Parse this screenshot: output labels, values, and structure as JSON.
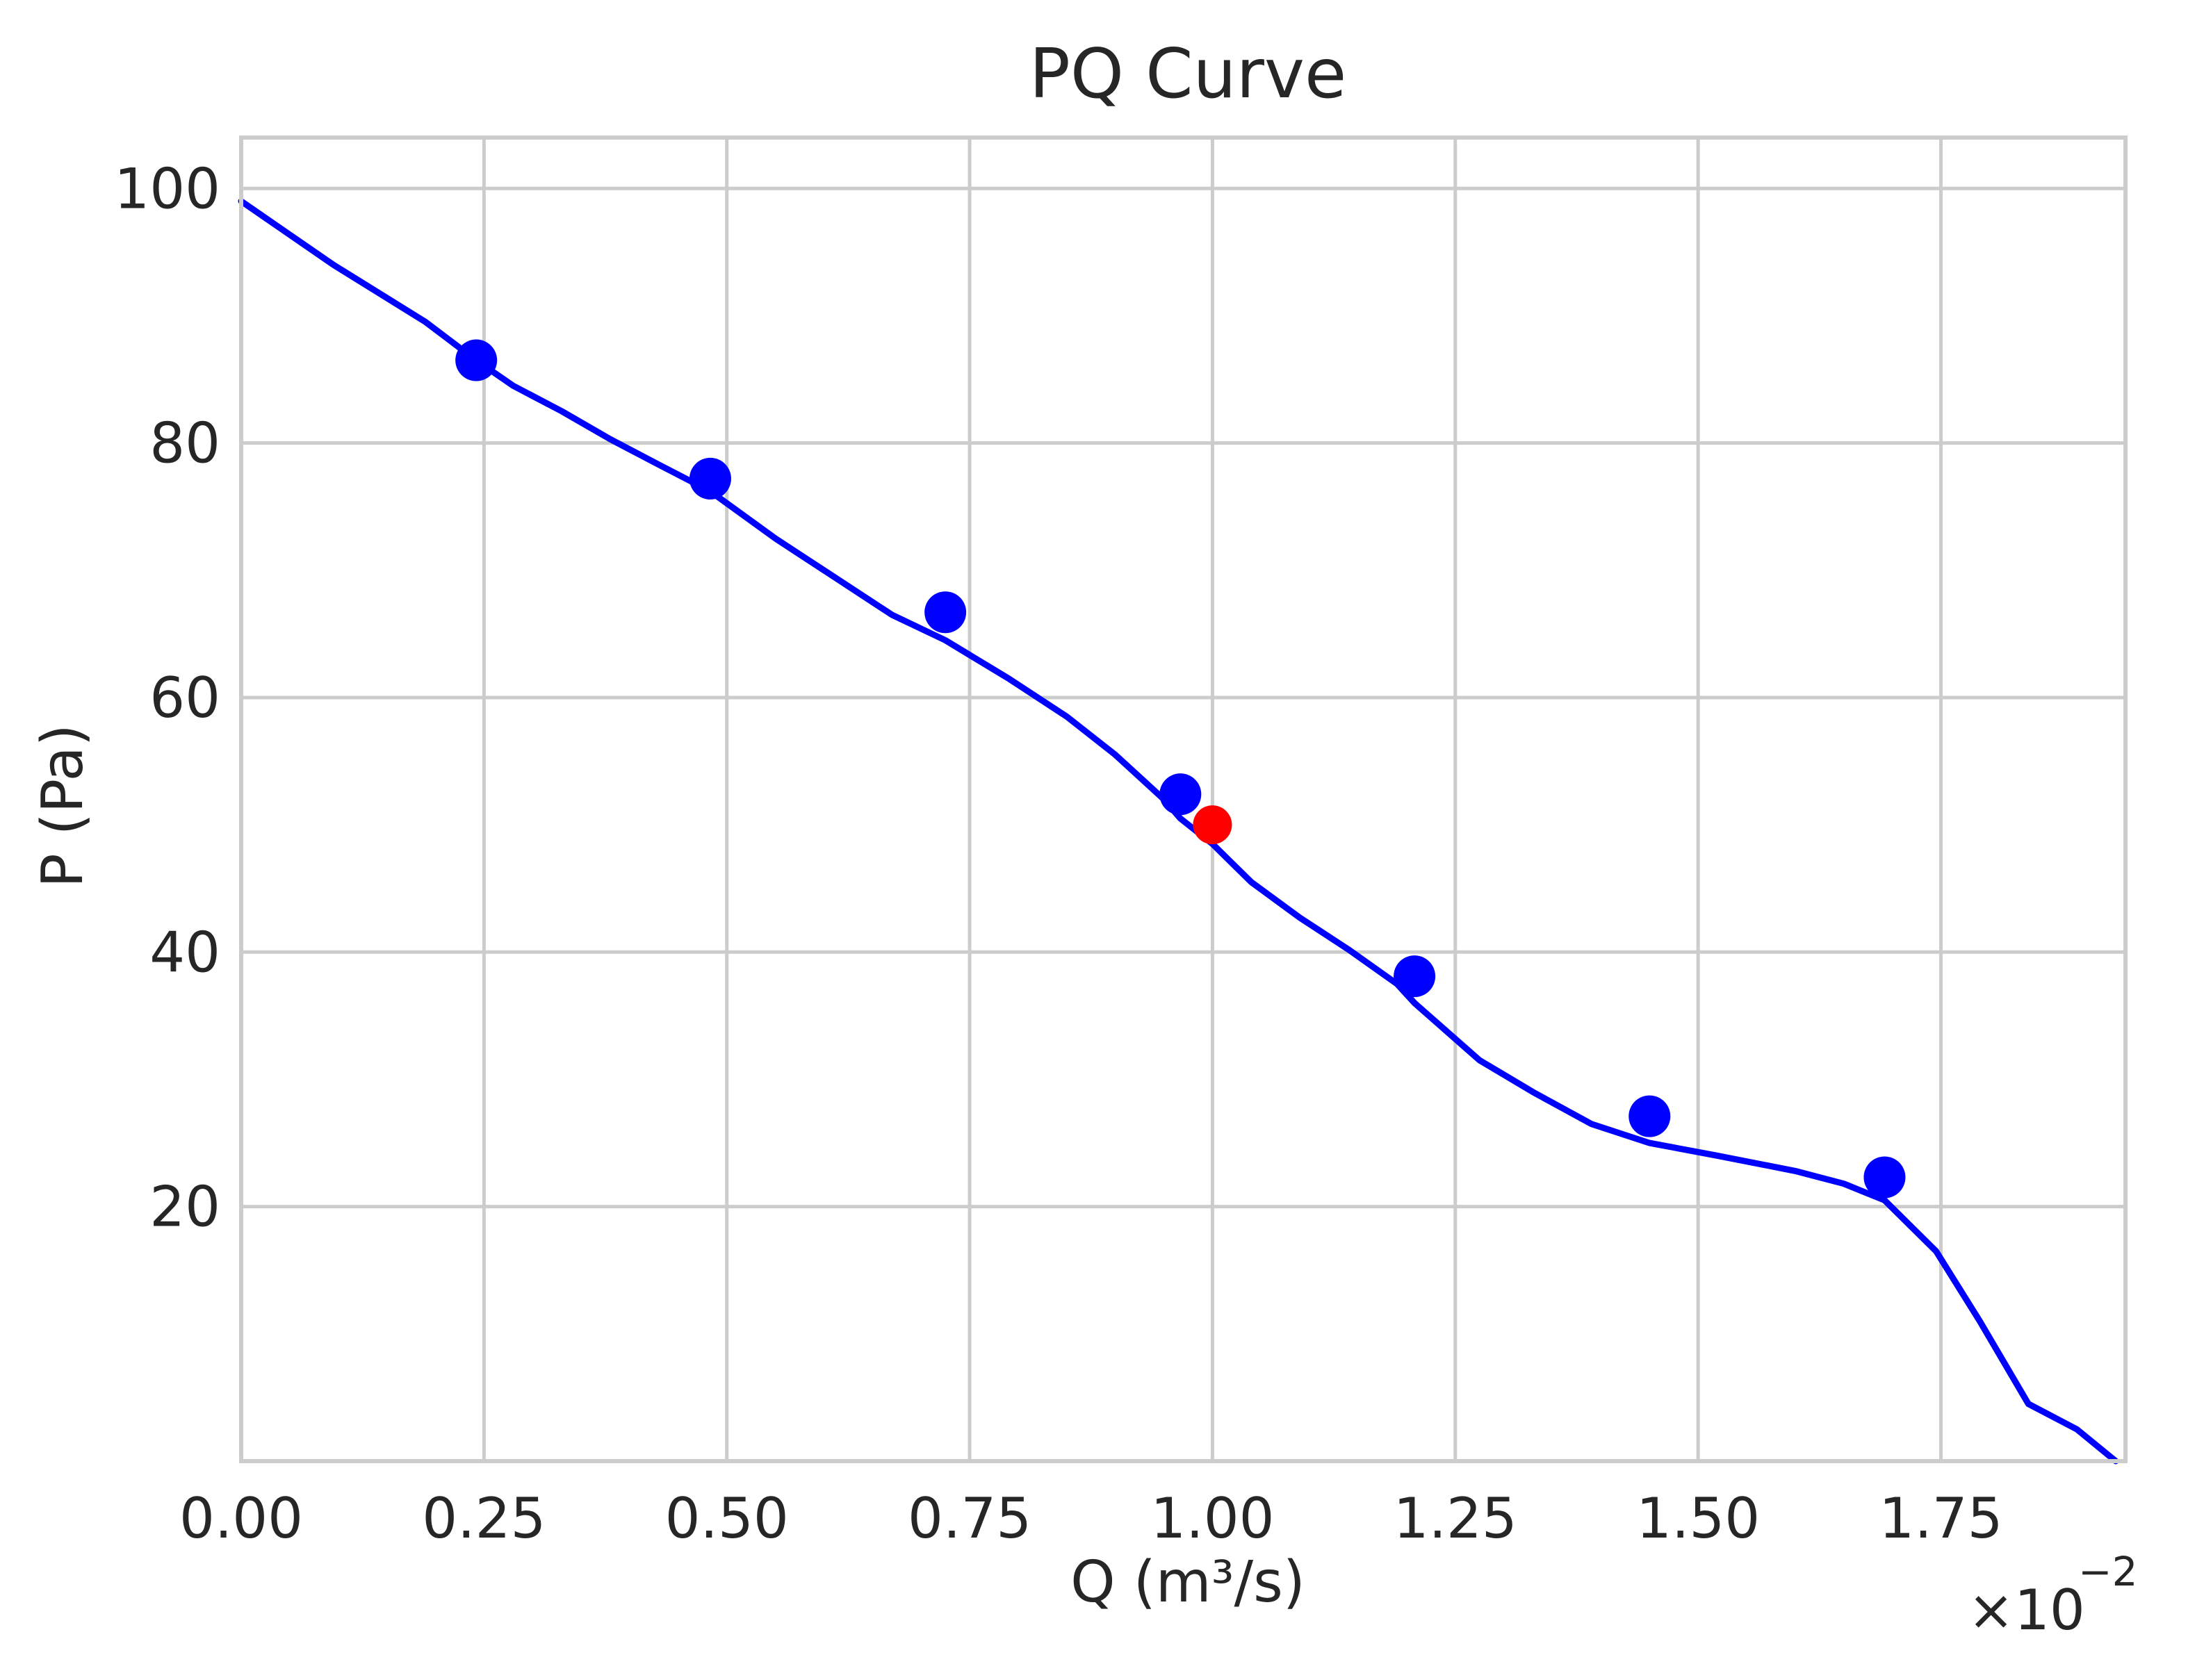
{
  "chart_data": {
    "type": "line",
    "title": "PQ Curve",
    "xlabel": "Q (m³/s)",
    "ylabel": "P (Pa)",
    "x_scale_label": "×10",
    "x_scale_exponent": "−2",
    "xlim": [
      0,
      1.94
    ],
    "ylim": [
      0,
      104
    ],
    "x_ticks": [
      "0.00",
      "0.25",
      "0.50",
      "0.75",
      "1.00",
      "1.25",
      "1.50",
      "1.75"
    ],
    "x_tick_values": [
      0,
      0.25,
      0.5,
      0.75,
      1.0,
      1.25,
      1.5,
      1.75
    ],
    "y_ticks": [
      "20",
      "40",
      "60",
      "80",
      "100"
    ],
    "y_tick_values": [
      20,
      40,
      60,
      80,
      100
    ],
    "grid": true,
    "series": [
      {
        "name": "PQ curve",
        "color": "#0000ff",
        "x": [
          0.0,
          0.095,
          0.19,
          0.242,
          0.28,
          0.33,
          0.38,
          0.43,
          0.483,
          0.55,
          0.61,
          0.67,
          0.725,
          0.79,
          0.85,
          0.9,
          0.95,
          0.967,
          1.0,
          1.04,
          1.09,
          1.14,
          1.19,
          1.208,
          1.275,
          1.33,
          1.39,
          1.45,
          1.52,
          1.6,
          1.65,
          1.692,
          1.745,
          1.79,
          1.84,
          1.89,
          1.93
        ],
        "y": [
          99,
          94,
          89.5,
          86.5,
          84.5,
          82.5,
          80.3,
          78.3,
          76.2,
          72.5,
          69.5,
          66.5,
          64.5,
          61.5,
          58.5,
          55.5,
          52,
          50.5,
          48.5,
          45.5,
          42.7,
          40.2,
          37.5,
          36,
          31.5,
          29,
          26.5,
          25,
          24,
          22.8,
          21.8,
          20.5,
          16.5,
          11,
          4.5,
          2.5,
          0
        ],
        "markers": {
          "x": [
            0.242,
            0.483,
            0.725,
            0.967,
            1.208,
            1.45,
            1.692
          ],
          "y": [
            86.5,
            77.2,
            66.7,
            52.4,
            38.1,
            27.1,
            22.3
          ]
        }
      }
    ],
    "highlight_point": {
      "color": "#ff0000",
      "x": 1.0,
      "y": 50.0
    }
  }
}
